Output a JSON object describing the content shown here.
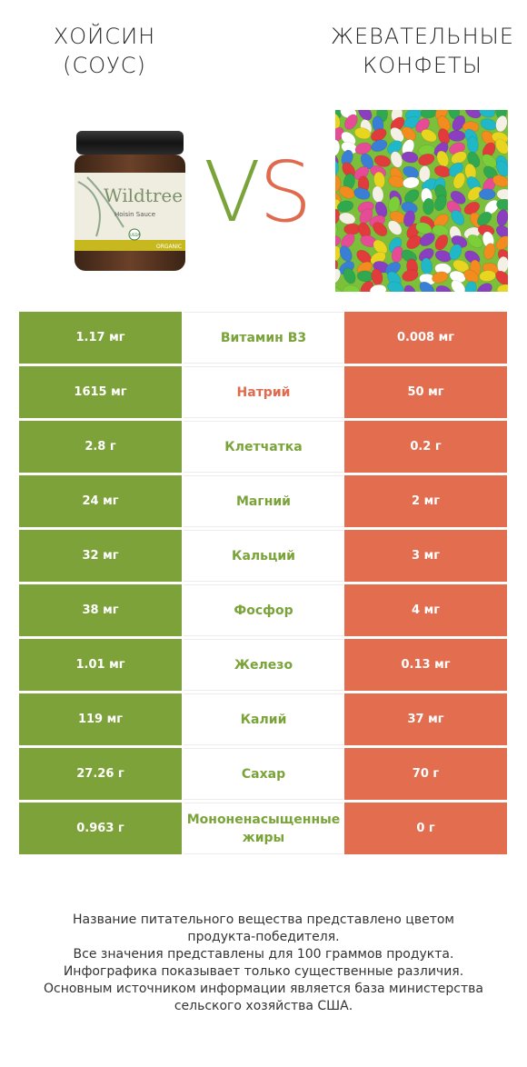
{
  "left_product": {
    "title_line1": "ХОЙСИН",
    "title_line2": "(СОУС)",
    "jar_brand": "Wildtree",
    "jar_label": "Hoisin Sauce",
    "jar_badge": "USDA",
    "jar_organic": "ORGANIC"
  },
  "right_product": {
    "title_line1": "ЖЕВАТЕЛЬНЫЕ",
    "title_line2": "КОНФЕТЫ"
  },
  "vs": {
    "v": "V",
    "s": "S"
  },
  "colors": {
    "winner_left": "#7da23a",
    "winner_right": "#e36d4f"
  },
  "rows": [
    {
      "left": "1.17 мг",
      "nutrient": "Витамин B3",
      "right": "0.008 мг",
      "winner": "left"
    },
    {
      "left": "1615 мг",
      "nutrient": "Натрий",
      "right": "50 мг",
      "winner": "right"
    },
    {
      "left": "2.8 г",
      "nutrient": "Клетчатка",
      "right": "0.2 г",
      "winner": "left"
    },
    {
      "left": "24 мг",
      "nutrient": "Магний",
      "right": "2 мг",
      "winner": "left"
    },
    {
      "left": "32 мг",
      "nutrient": "Кальций",
      "right": "3 мг",
      "winner": "left"
    },
    {
      "left": "38 мг",
      "nutrient": "Фосфор",
      "right": "4 мг",
      "winner": "left"
    },
    {
      "left": "1.01 мг",
      "nutrient": "Железо",
      "right": "0.13 мг",
      "winner": "left"
    },
    {
      "left": "119 мг",
      "nutrient": "Калий",
      "right": "37 мг",
      "winner": "left"
    },
    {
      "left": "27.26 г",
      "nutrient": "Сахар",
      "right": "70 г",
      "winner": "left"
    },
    {
      "left": "0.963 г",
      "nutrient": "Мононенасыщенные жиры",
      "right": "0 г",
      "winner": "left"
    }
  ],
  "footer": {
    "line1": "Название питательного вещества представлено цветом",
    "line2": "продукта-победителя.",
    "line3": "Все значения представлены для 100 граммов продукта.",
    "line4": "Инфографика показывает только существенные различия.",
    "line5": "Основным источником информации является база министерства",
    "line6": "сельского хозяйства США."
  }
}
